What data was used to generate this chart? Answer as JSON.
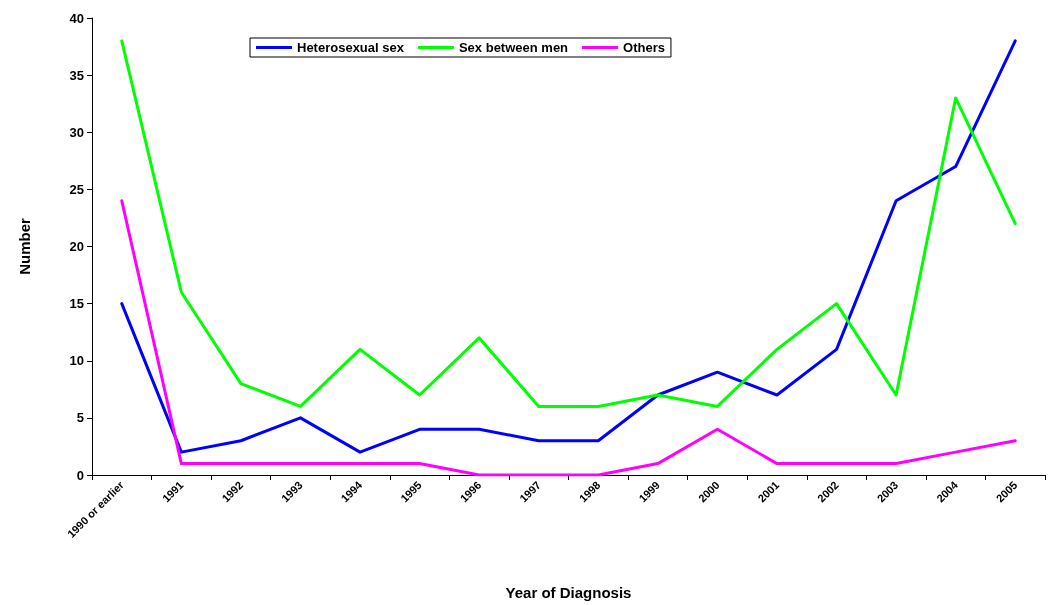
{
  "chart_data": {
    "type": "line",
    "xlabel": "Year of Diagnosis",
    "ylabel": "Number",
    "categories": [
      "1990 or earlier",
      "1991",
      "1992",
      "1993",
      "1994",
      "1995",
      "1996",
      "1997",
      "1998",
      "1999",
      "2000",
      "2001",
      "2002",
      "2003",
      "2004",
      "2005"
    ],
    "series": [
      {
        "name": "Heterosexual sex",
        "color": "#0000ff",
        "values": [
          15,
          2,
          3,
          5,
          2,
          4,
          4,
          3,
          3,
          7,
          9,
          7,
          11,
          24,
          27,
          38
        ]
      },
      {
        "name": "Sex between men",
        "color": "#00ff00",
        "values": [
          38,
          16,
          8,
          6,
          11,
          7,
          12,
          6,
          6,
          7,
          6,
          11,
          15,
          7,
          33,
          22
        ]
      },
      {
        "name": "Others",
        "color": "#ff00ff",
        "values": [
          24,
          1,
          1,
          1,
          1,
          1,
          0,
          0,
          0,
          1,
          4,
          1,
          1,
          1,
          2,
          3
        ]
      }
    ],
    "ylim": [
      0,
      40
    ],
    "yticks": [
      0,
      5,
      10,
      15,
      20,
      25,
      30,
      35,
      40
    ],
    "grid": false,
    "legend": "top",
    "marker": "none",
    "line_style": "solid"
  }
}
